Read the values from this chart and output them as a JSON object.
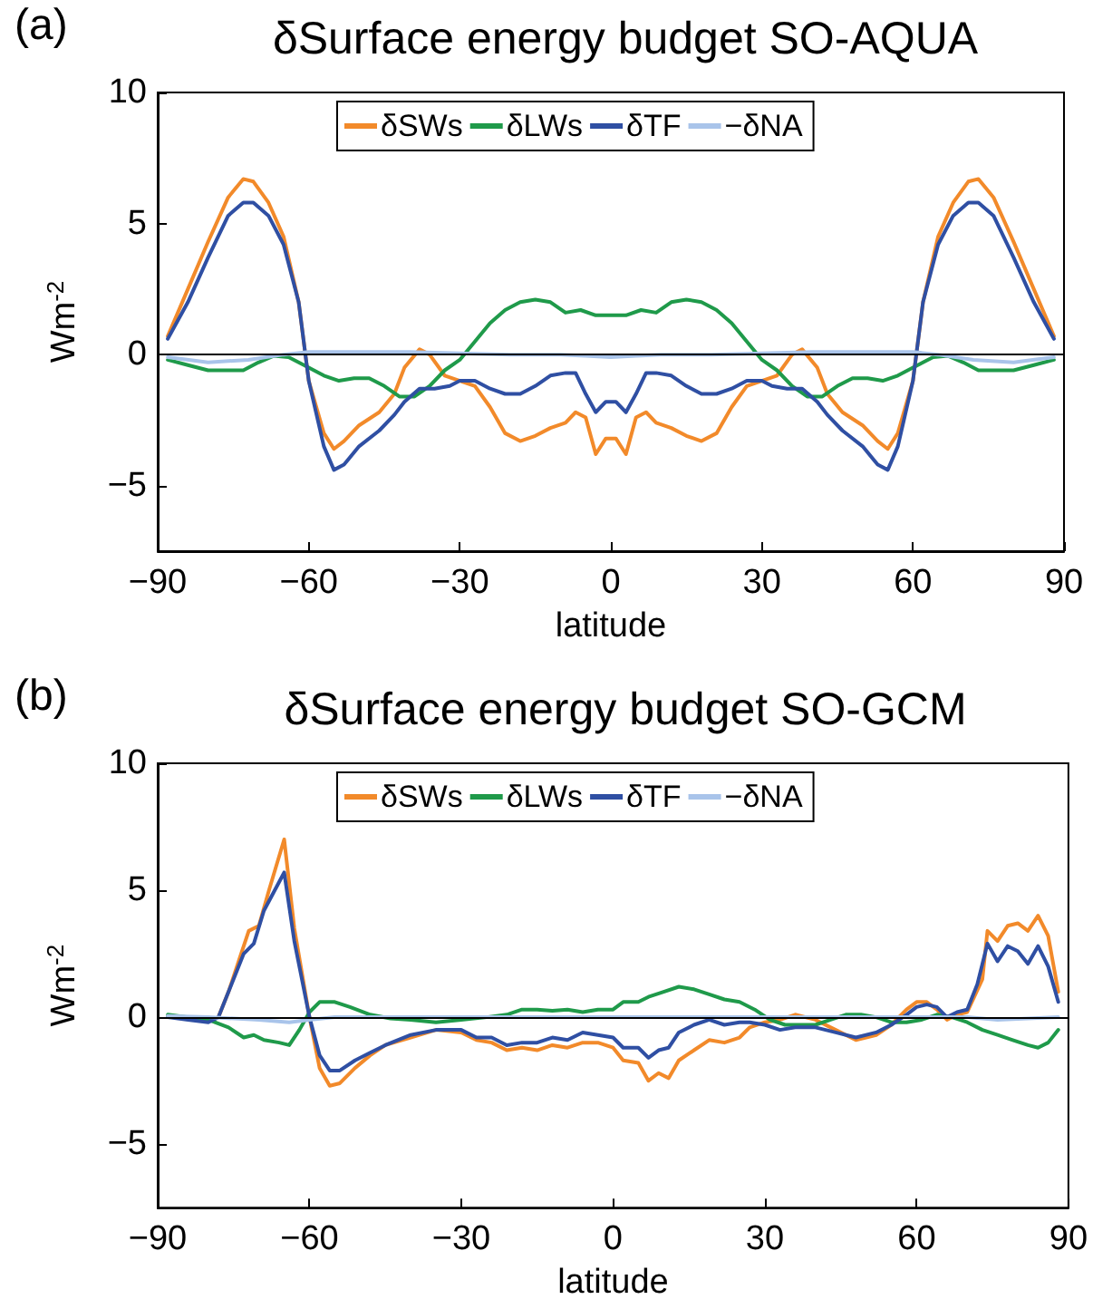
{
  "chart_data": [
    {
      "type": "line",
      "title": "δSurface energy budget SO-AQUA",
      "xlabel": "latitude",
      "ylabel": "Wm$^{-2}$",
      "annotations": [
        "(a)"
      ],
      "xlim": [
        -90,
        90
      ],
      "xticks": [
        -90,
        -60,
        -30,
        0,
        30,
        60,
        90
      ],
      "ylim": [
        -7.5,
        10
      ],
      "yticks": [
        -5,
        0,
        5,
        10
      ],
      "legend": "top",
      "grid": false,
      "marker": "none",
      "line_style": "solid",
      "ref_lines": [
        {
          "axis": "y",
          "value": 0,
          "color": "#000000"
        }
      ],
      "series": [
        {
          "name": "δSWs",
          "color": "#f28a2a",
          "x": [
            -88,
            -84,
            -80,
            -76,
            -73,
            -71,
            -68,
            -65,
            -62,
            -60,
            -57,
            -55,
            -53,
            -50,
            -46,
            -43,
            -41,
            -38,
            -36,
            -33,
            -30,
            -27,
            -24,
            -21,
            -18,
            -15,
            -12,
            -9,
            -7,
            -5,
            -3,
            -1,
            1,
            3,
            5,
            7,
            9,
            12,
            15,
            18,
            21,
            24,
            27,
            30,
            33,
            36,
            38,
            41,
            43,
            46,
            50,
            53,
            55,
            57,
            60,
            62,
            65,
            68,
            71,
            73,
            76,
            80,
            84,
            88
          ],
          "values": [
            0.7,
            2.5,
            4.3,
            6.0,
            6.7,
            6.6,
            5.8,
            4.5,
            2.0,
            -1.0,
            -3.0,
            -3.6,
            -3.3,
            -2.7,
            -2.2,
            -1.5,
            -0.5,
            0.2,
            0,
            -0.8,
            -1.0,
            -1.2,
            -2.0,
            -3.0,
            -3.3,
            -3.1,
            -2.8,
            -2.6,
            -2.2,
            -2.4,
            -3.8,
            -3.2,
            -3.2,
            -3.8,
            -2.4,
            -2.2,
            -2.6,
            -2.8,
            -3.1,
            -3.3,
            -3.0,
            -2.0,
            -1.2,
            -1.0,
            -0.8,
            0,
            0.2,
            -0.5,
            -1.5,
            -2.2,
            -2.7,
            -3.3,
            -3.6,
            -3.0,
            -1.0,
            2.0,
            4.5,
            5.8,
            6.6,
            6.7,
            6.0,
            4.3,
            2.5,
            0.7
          ]
        },
        {
          "name": "δLWs",
          "color": "#1f9a4a",
          "x": [
            -88,
            -84,
            -80,
            -76,
            -73,
            -70,
            -67,
            -64,
            -60,
            -57,
            -54,
            -51,
            -48,
            -45,
            -42,
            -39,
            -36,
            -33,
            -30,
            -27,
            -24,
            -21,
            -18,
            -15,
            -12,
            -9,
            -6,
            -3,
            0,
            3,
            6,
            9,
            12,
            15,
            18,
            21,
            24,
            27,
            30,
            33,
            36,
            39,
            42,
            45,
            48,
            51,
            54,
            57,
            60,
            64,
            67,
            70,
            73,
            76,
            80,
            84,
            88
          ],
          "values": [
            -0.2,
            -0.4,
            -0.6,
            -0.6,
            -0.6,
            -0.3,
            -0.05,
            -0.1,
            -0.5,
            -0.8,
            -1.0,
            -0.9,
            -0.9,
            -1.2,
            -1.6,
            -1.6,
            -1.2,
            -0.6,
            -0.2,
            0.5,
            1.2,
            1.7,
            2.0,
            2.1,
            2.0,
            1.6,
            1.7,
            1.5,
            1.5,
            1.5,
            1.7,
            1.6,
            2.0,
            2.1,
            2.0,
            1.7,
            1.2,
            0.5,
            -0.2,
            -0.6,
            -1.2,
            -1.6,
            -1.6,
            -1.2,
            -0.9,
            -0.9,
            -1.0,
            -0.8,
            -0.5,
            -0.1,
            -0.05,
            -0.3,
            -0.6,
            -0.6,
            -0.6,
            -0.4,
            -0.2
          ]
        },
        {
          "name": "δTF",
          "color": "#2f4fa3",
          "x": [
            -88,
            -84,
            -80,
            -76,
            -73,
            -71,
            -68,
            -65,
            -62,
            -60,
            -57,
            -55,
            -53,
            -50,
            -46,
            -43,
            -41,
            -38,
            -35,
            -32,
            -30,
            -27,
            -24,
            -21,
            -18,
            -15,
            -12,
            -9,
            -7,
            -5,
            -3,
            -1,
            1,
            3,
            5,
            7,
            9,
            12,
            15,
            18,
            21,
            24,
            27,
            30,
            32,
            35,
            38,
            41,
            43,
            46,
            50,
            53,
            55,
            57,
            60,
            62,
            65,
            68,
            71,
            73,
            76,
            80,
            84,
            88
          ],
          "values": [
            0.6,
            2.0,
            3.7,
            5.3,
            5.8,
            5.8,
            5.3,
            4.2,
            2.0,
            -1.0,
            -3.5,
            -4.4,
            -4.2,
            -3.5,
            -2.9,
            -2.3,
            -1.8,
            -1.3,
            -1.3,
            -1.2,
            -1.0,
            -1.0,
            -1.3,
            -1.5,
            -1.5,
            -1.2,
            -0.8,
            -0.7,
            -0.7,
            -1.5,
            -2.2,
            -1.8,
            -1.8,
            -2.2,
            -1.5,
            -0.7,
            -0.7,
            -0.8,
            -1.2,
            -1.5,
            -1.5,
            -1.3,
            -1.0,
            -1.0,
            -1.2,
            -1.3,
            -1.3,
            -1.8,
            -2.3,
            -2.9,
            -3.5,
            -4.2,
            -4.4,
            -3.5,
            -1.0,
            2.0,
            4.2,
            5.3,
            5.8,
            5.8,
            5.3,
            3.7,
            2.0,
            0.6
          ]
        },
        {
          "name": "−δNA",
          "color": "#a9c4ea",
          "x": [
            -88,
            -80,
            -72,
            -65,
            -60,
            -50,
            -40,
            -30,
            -20,
            -10,
            -5,
            0,
            5,
            10,
            20,
            30,
            40,
            50,
            60,
            65,
            72,
            80,
            88
          ],
          "values": [
            -0.1,
            -0.3,
            -0.2,
            0,
            0.1,
            0.1,
            0.1,
            0.05,
            0,
            0,
            -0.05,
            -0.1,
            -0.05,
            0,
            0,
            0.05,
            0.1,
            0.1,
            0.1,
            0,
            -0.2,
            -0.3,
            -0.1
          ]
        }
      ]
    },
    {
      "type": "line",
      "title": "δSurface energy budget SO-GCM",
      "xlabel": "latitude",
      "ylabel": "Wm$^{-2}$",
      "annotations": [
        "(b)"
      ],
      "xlim": [
        -90,
        90
      ],
      "xticks": [
        -90,
        -60,
        -30,
        0,
        30,
        60,
        90
      ],
      "ylim": [
        -7.5,
        10
      ],
      "yticks": [
        -5,
        0,
        5,
        10
      ],
      "legend": "top",
      "grid": false,
      "marker": "none",
      "line_style": "solid",
      "ref_lines": [
        {
          "axis": "y",
          "value": 0,
          "color": "#000000"
        }
      ],
      "series": [
        {
          "name": "δSWs",
          "color": "#f28a2a",
          "x": [
            -78,
            -76,
            -74,
            -72,
            -70,
            -68,
            -65,
            -63,
            -60,
            -58,
            -56,
            -54,
            -51,
            -48,
            -45,
            -40,
            -35,
            -30,
            -27,
            -24,
            -21,
            -18,
            -15,
            -12,
            -9,
            -6,
            -3,
            0,
            2,
            5,
            7,
            9,
            11,
            13,
            16,
            19,
            22,
            25,
            27,
            30,
            33,
            36,
            40,
            44,
            48,
            52,
            55,
            58,
            60,
            62,
            64,
            66,
            68,
            70,
            73,
            74,
            76,
            78,
            80,
            82,
            84,
            86,
            88
          ],
          "values": [
            0,
            1.0,
            2.2,
            3.4,
            3.6,
            5.0,
            7.0,
            3.5,
            0,
            -2.0,
            -2.7,
            -2.6,
            -2.0,
            -1.5,
            -1.1,
            -0.8,
            -0.5,
            -0.6,
            -0.9,
            -1.0,
            -1.3,
            -1.2,
            -1.3,
            -1.1,
            -1.2,
            -1.0,
            -1.0,
            -1.2,
            -1.7,
            -1.8,
            -2.5,
            -2.2,
            -2.4,
            -1.7,
            -1.3,
            -0.9,
            -1.0,
            -0.8,
            -0.4,
            -0.2,
            -0.1,
            0.1,
            -0.1,
            -0.5,
            -0.9,
            -0.7,
            -0.3,
            0.3,
            0.6,
            0.6,
            0.3,
            -0.1,
            0.1,
            0.2,
            1.5,
            3.4,
            3.0,
            3.6,
            3.7,
            3.4,
            4.0,
            3.2,
            1.0
          ]
        },
        {
          "name": "δLWs",
          "color": "#1f9a4a",
          "x": [
            -88,
            -84,
            -80,
            -76,
            -73,
            -71,
            -69,
            -66,
            -64,
            -62,
            -60,
            -58,
            -55,
            -52,
            -48,
            -44,
            -40,
            -35,
            -30,
            -25,
            -21,
            -18,
            -15,
            -12,
            -9,
            -6,
            -3,
            0,
            2,
            5,
            7,
            10,
            13,
            16,
            19,
            22,
            25,
            28,
            31,
            34,
            37,
            40,
            43,
            46,
            49,
            52,
            55,
            58,
            61,
            64,
            67,
            70,
            73,
            76,
            79,
            82,
            84,
            86,
            88
          ],
          "values": [
            0.1,
            0,
            -0.1,
            -0.4,
            -0.8,
            -0.7,
            -0.9,
            -1.0,
            -1.1,
            -0.5,
            0.2,
            0.6,
            0.6,
            0.4,
            0.1,
            -0.05,
            -0.1,
            -0.2,
            -0.1,
            0,
            0.1,
            0.3,
            0.3,
            0.25,
            0.3,
            0.2,
            0.3,
            0.3,
            0.6,
            0.6,
            0.8,
            1.0,
            1.2,
            1.1,
            0.9,
            0.7,
            0.6,
            0.3,
            -0.1,
            -0.3,
            -0.3,
            -0.3,
            -0.1,
            0.1,
            0.1,
            0,
            -0.2,
            -0.2,
            -0.1,
            0.1,
            0,
            -0.2,
            -0.5,
            -0.7,
            -0.9,
            -1.1,
            -1.2,
            -1.0,
            -0.5
          ]
        },
        {
          "name": "δTF",
          "color": "#2f4fa3",
          "x": [
            -88,
            -84,
            -80,
            -78,
            -76,
            -73,
            -71,
            -69,
            -65,
            -63,
            -60,
            -58,
            -56,
            -54,
            -51,
            -48,
            -45,
            -40,
            -35,
            -30,
            -27,
            -24,
            -21,
            -18,
            -15,
            -12,
            -9,
            -6,
            -3,
            0,
            2,
            5,
            7,
            9,
            11,
            13,
            16,
            19,
            22,
            25,
            27,
            30,
            33,
            36,
            40,
            44,
            48,
            52,
            55,
            58,
            60,
            62,
            64,
            66,
            68,
            70,
            72,
            74,
            76,
            78,
            80,
            82,
            84,
            86,
            88
          ],
          "values": [
            0,
            -0.1,
            -0.2,
            0,
            1.0,
            2.5,
            2.9,
            4.2,
            5.7,
            3.0,
            0,
            -1.5,
            -2.1,
            -2.1,
            -1.7,
            -1.4,
            -1.1,
            -0.7,
            -0.5,
            -0.5,
            -0.8,
            -0.8,
            -1.1,
            -1.0,
            -1.0,
            -0.8,
            -0.9,
            -0.6,
            -0.7,
            -0.8,
            -1.2,
            -1.2,
            -1.6,
            -1.3,
            -1.2,
            -0.6,
            -0.3,
            -0.1,
            -0.3,
            -0.2,
            -0.2,
            -0.3,
            -0.5,
            -0.4,
            -0.4,
            -0.6,
            -0.8,
            -0.6,
            -0.3,
            0.1,
            0.4,
            0.5,
            0.4,
            0,
            0.2,
            0.3,
            1.3,
            2.9,
            2.2,
            2.8,
            2.6,
            2.1,
            2.8,
            2.0,
            0.6
          ]
        },
        {
          "name": "−δNA",
          "color": "#a9c4ea",
          "x": [
            -88,
            -80,
            -70,
            -64,
            -60,
            -55,
            -40,
            0,
            40,
            70,
            76,
            82,
            88
          ],
          "values": [
            0.05,
            0,
            -0.1,
            -0.2,
            -0.1,
            0,
            0,
            0,
            0,
            0,
            -0.1,
            -0.05,
            0
          ]
        }
      ]
    }
  ]
}
